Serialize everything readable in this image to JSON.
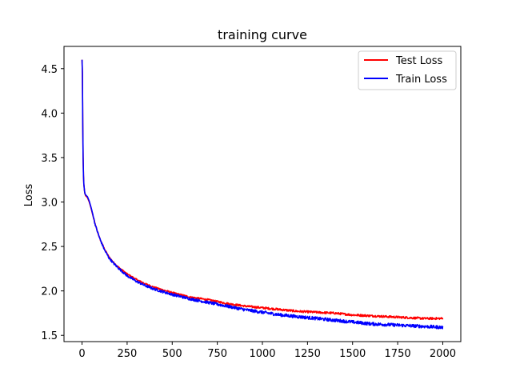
{
  "chart_data": {
    "type": "line",
    "title": "training curve",
    "xlabel": "",
    "ylabel": "Loss",
    "xlim": [
      -100,
      2100
    ],
    "ylim": [
      1.43,
      4.75
    ],
    "x_ticks": [
      0,
      250,
      500,
      750,
      1000,
      1250,
      1500,
      1750,
      2000
    ],
    "y_ticks": [
      1.5,
      2.0,
      2.5,
      3.0,
      3.5,
      4.0,
      4.5
    ],
    "x_tick_labels": [
      "0",
      "250",
      "500",
      "750",
      "1000",
      "1250",
      "1500",
      "1750",
      "2000"
    ],
    "y_tick_labels": [
      "1.5",
      "2.0",
      "2.5",
      "3.0",
      "3.5",
      "4.0",
      "4.5"
    ],
    "grid": false,
    "legend_position": "top-right",
    "series": [
      {
        "name": "Test Loss",
        "color": "#ff0000",
        "noise": 0.012,
        "x": [
          0,
          2,
          5,
          8,
          10,
          15,
          20,
          30,
          40,
          50,
          60,
          70,
          80,
          100,
          125,
          150,
          175,
          200,
          250,
          300,
          350,
          400,
          500,
          600,
          700,
          800,
          900,
          1000,
          1100,
          1200,
          1300,
          1400,
          1500,
          1600,
          1700,
          1800,
          1900,
          2000
        ],
        "y": [
          4.6,
          4.45,
          3.6,
          3.3,
          3.2,
          3.1,
          3.07,
          3.05,
          3.0,
          2.93,
          2.85,
          2.77,
          2.7,
          2.58,
          2.47,
          2.38,
          2.32,
          2.27,
          2.19,
          2.13,
          2.08,
          2.04,
          1.98,
          1.93,
          1.9,
          1.86,
          1.83,
          1.81,
          1.79,
          1.77,
          1.76,
          1.75,
          1.73,
          1.72,
          1.71,
          1.7,
          1.69,
          1.69
        ]
      },
      {
        "name": "Train Loss",
        "color": "#0000ff",
        "noise": 0.018,
        "x": [
          0,
          2,
          5,
          8,
          10,
          15,
          20,
          30,
          40,
          50,
          60,
          70,
          80,
          100,
          125,
          150,
          175,
          200,
          250,
          300,
          350,
          400,
          500,
          600,
          700,
          800,
          900,
          1000,
          1100,
          1200,
          1300,
          1400,
          1500,
          1600,
          1700,
          1800,
          1900,
          2000
        ],
        "y": [
          4.6,
          4.45,
          3.6,
          3.3,
          3.2,
          3.1,
          3.08,
          3.06,
          3.01,
          2.94,
          2.86,
          2.77,
          2.7,
          2.58,
          2.46,
          2.37,
          2.31,
          2.26,
          2.17,
          2.11,
          2.06,
          2.02,
          1.96,
          1.91,
          1.87,
          1.83,
          1.79,
          1.76,
          1.73,
          1.71,
          1.69,
          1.67,
          1.65,
          1.63,
          1.62,
          1.61,
          1.6,
          1.59
        ]
      }
    ]
  }
}
